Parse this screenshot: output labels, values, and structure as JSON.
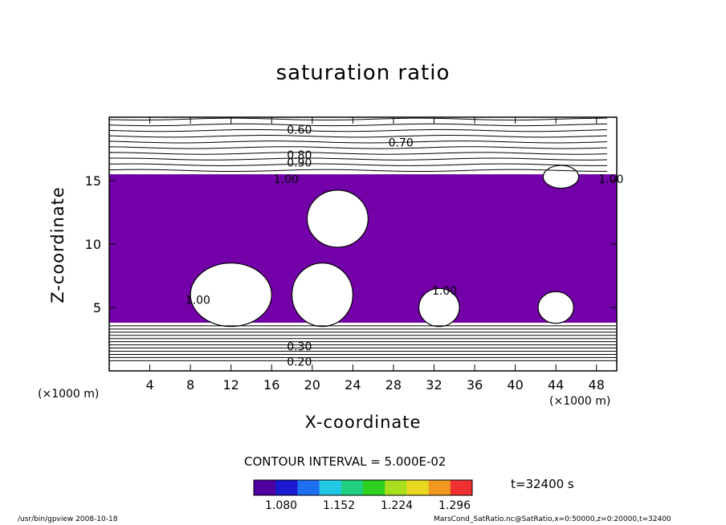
{
  "chart_data": {
    "type": "contour",
    "title": "saturation ratio",
    "xlabel": "X-coordinate",
    "ylabel": "Z-coordinate",
    "x_unit_label": "(×1000 m)",
    "xlim": [
      0,
      50
    ],
    "ylim": [
      0,
      20
    ],
    "x_ticks": [
      4,
      8,
      12,
      16,
      20,
      24,
      28,
      32,
      36,
      40,
      44,
      48
    ],
    "y_ticks": [
      5,
      10,
      15
    ],
    "shaded_region": {
      "color": "#7300a8",
      "z_top": 15.5,
      "z_bottom": 3.8
    },
    "clear_pockets": [
      {
        "x_center": 22.5,
        "z_center": 12.0,
        "width": 6,
        "height": 4.5
      },
      {
        "x_center": 12.0,
        "z_center": 6.0,
        "width": 8,
        "height": 5
      },
      {
        "x_center": 21.0,
        "z_center": 6.0,
        "width": 6,
        "height": 5
      },
      {
        "x_center": 32.5,
        "z_center": 5.0,
        "width": 4,
        "height": 3
      },
      {
        "x_center": 44.0,
        "z_center": 5.0,
        "width": 3.5,
        "height": 2.5
      },
      {
        "x_center": 44.5,
        "z_center": 15.3,
        "width": 3.5,
        "height": 1.8
      }
    ],
    "contour_labels": [
      "0.60",
      "0.70",
      "0.80",
      "0.90",
      "1.00",
      "1.00",
      "1.00",
      "1.00",
      "0.30",
      "0.20"
    ],
    "contour_interval": "CONTOUR INTERVAL = 5.000E-02",
    "colorbar_ticks": [
      "1.080",
      "1.152",
      "1.224",
      "1.296"
    ],
    "colorbar_colors": [
      "#5000a0",
      "#1a1ad0",
      "#1e6ef0",
      "#20c8e6",
      "#20d080",
      "#30d020",
      "#a8e020",
      "#e8d820",
      "#f09820",
      "#f03030"
    ]
  },
  "annotations": {
    "timestamp": "t=32400 s",
    "footer_left": "/usr/bin/gpview   2008-10-18",
    "footer_right": "MarsCond_SatRatio.nc@SatRatio,x=0:50000,z=0:20000,t=32400"
  }
}
